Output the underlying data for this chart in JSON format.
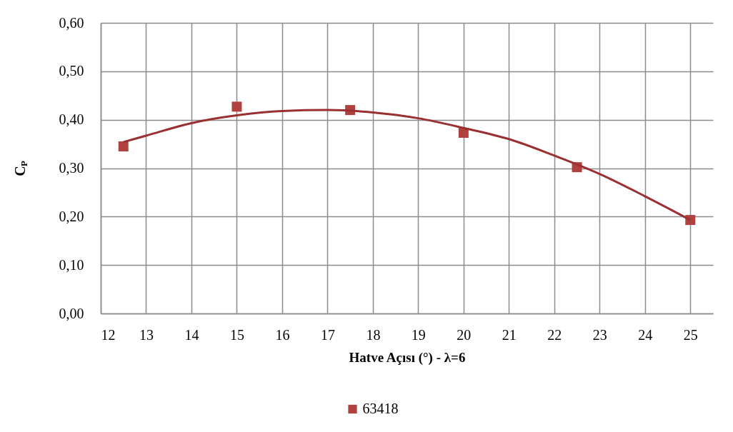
{
  "chart_data": {
    "type": "scatter",
    "xlabel": "Hatve Açısı (°) - λ=6",
    "ylabel": "C$_{P}$",
    "xlim": [
      12,
      25.5
    ],
    "xticks": [
      12,
      13,
      14,
      15,
      16,
      17,
      18,
      19,
      20,
      21,
      22,
      23,
      24,
      25
    ],
    "ylim": [
      0,
      0.6
    ],
    "yticks": [
      {
        "value": 0,
        "label": "0,00"
      },
      {
        "value": 0.1,
        "label": "0,10"
      },
      {
        "value": 0.2,
        "label": "0,20"
      },
      {
        "value": 0.3,
        "label": "0,30"
      },
      {
        "value": 0.4,
        "label": "0,40"
      },
      {
        "value": 0.5,
        "label": "0,50"
      },
      {
        "value": 0.6,
        "label": "0,60"
      }
    ],
    "grid": true,
    "legend": "bottom",
    "marker": "square",
    "series": [
      {
        "name": "63418",
        "color": "#b0413e",
        "x": [
          12.5,
          15,
          17.5,
          20,
          22.5,
          25
        ],
        "values": [
          0.345,
          0.427,
          0.42,
          0.373,
          0.302,
          0.193
        ]
      },
      {
        "type": "line",
        "marker": "none",
        "line_style": "solid",
        "color": "#9b3030",
        "x": [
          12.5,
          13,
          14,
          15,
          16,
          17,
          18,
          19,
          20,
          21,
          22,
          23,
          24,
          25
        ],
        "values": [
          0.354,
          0.367,
          0.393,
          0.409,
          0.418,
          0.42,
          0.415,
          0.403,
          0.383,
          0.36,
          0.326,
          0.288,
          0.242,
          0.193
        ]
      }
    ]
  }
}
